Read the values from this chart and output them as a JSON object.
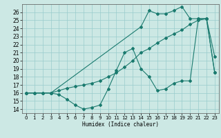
{
  "xlabel": "Humidex (Indice chaleur)",
  "bg_color": "#cce8e4",
  "grid_color": "#99cccc",
  "line_color": "#1a7a6e",
  "xlim": [
    -0.5,
    23.5
  ],
  "ylim": [
    13.5,
    27.0
  ],
  "yticks": [
    14,
    15,
    16,
    17,
    18,
    19,
    20,
    21,
    22,
    23,
    24,
    25,
    26
  ],
  "xticks": [
    0,
    1,
    2,
    3,
    4,
    5,
    6,
    7,
    8,
    9,
    10,
    11,
    12,
    13,
    14,
    15,
    16,
    17,
    18,
    19,
    20,
    21,
    22,
    23
  ],
  "line1_x": [
    0,
    1,
    2,
    3,
    4,
    5,
    6,
    7,
    8,
    9,
    10,
    11,
    12,
    13,
    14,
    15,
    16,
    17,
    18,
    19,
    20,
    21,
    22,
    23
  ],
  "line1_y": [
    16,
    16,
    16,
    16,
    15.8,
    15.2,
    14.5,
    14.0,
    14.2,
    14.5,
    16.5,
    18.8,
    21.0,
    21.5,
    19.0,
    18.0,
    16.3,
    16.5,
    17.2,
    17.5,
    17.5,
    25.2,
    25.2,
    20.5
  ],
  "line2_x": [
    0,
    1,
    2,
    3,
    4,
    5,
    6,
    7,
    8,
    9,
    10,
    11,
    12,
    13,
    14,
    15,
    16,
    17,
    18,
    19,
    20,
    21,
    22,
    23
  ],
  "line2_y": [
    16,
    16,
    16,
    16,
    16.3,
    16.6,
    16.8,
    17.0,
    17.2,
    17.5,
    18.0,
    18.5,
    19.2,
    20.0,
    21.0,
    21.5,
    22.2,
    22.8,
    23.3,
    23.8,
    24.5,
    25.0,
    25.2,
    18.5
  ],
  "line3_x": [
    0,
    3,
    14,
    15,
    16,
    17,
    18,
    19,
    20,
    21,
    22,
    23
  ],
  "line3_y": [
    16,
    16,
    24.2,
    26.2,
    25.8,
    25.8,
    26.2,
    26.7,
    25.2,
    25.2,
    25.2,
    18.5
  ]
}
